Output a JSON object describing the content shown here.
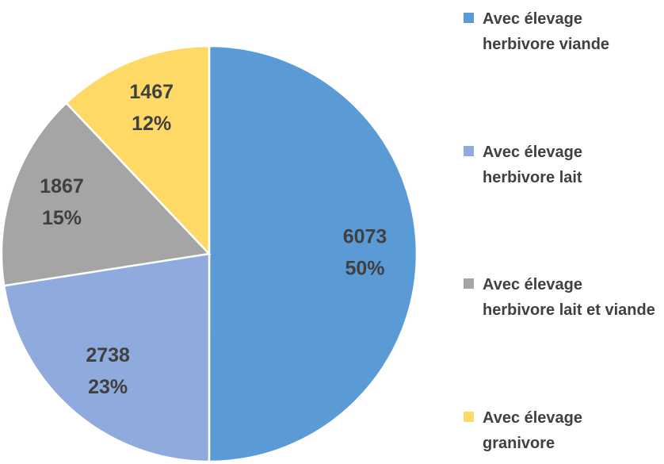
{
  "chart_data": {
    "type": "pie",
    "categories": [
      "Avec élevage herbivore viande",
      "Avec élevage herbivore lait",
      "Avec élevage herbivore lait et viande",
      "Avec élevage granivore"
    ],
    "values": [
      6073,
      2738,
      1867,
      1467
    ],
    "percent_labels": [
      "50%",
      "23%",
      "15%",
      "12%"
    ],
    "colors": [
      "#5b9bd5",
      "#8faadc",
      "#a5a5a5",
      "#ffd966"
    ],
    "legend": "right"
  }
}
